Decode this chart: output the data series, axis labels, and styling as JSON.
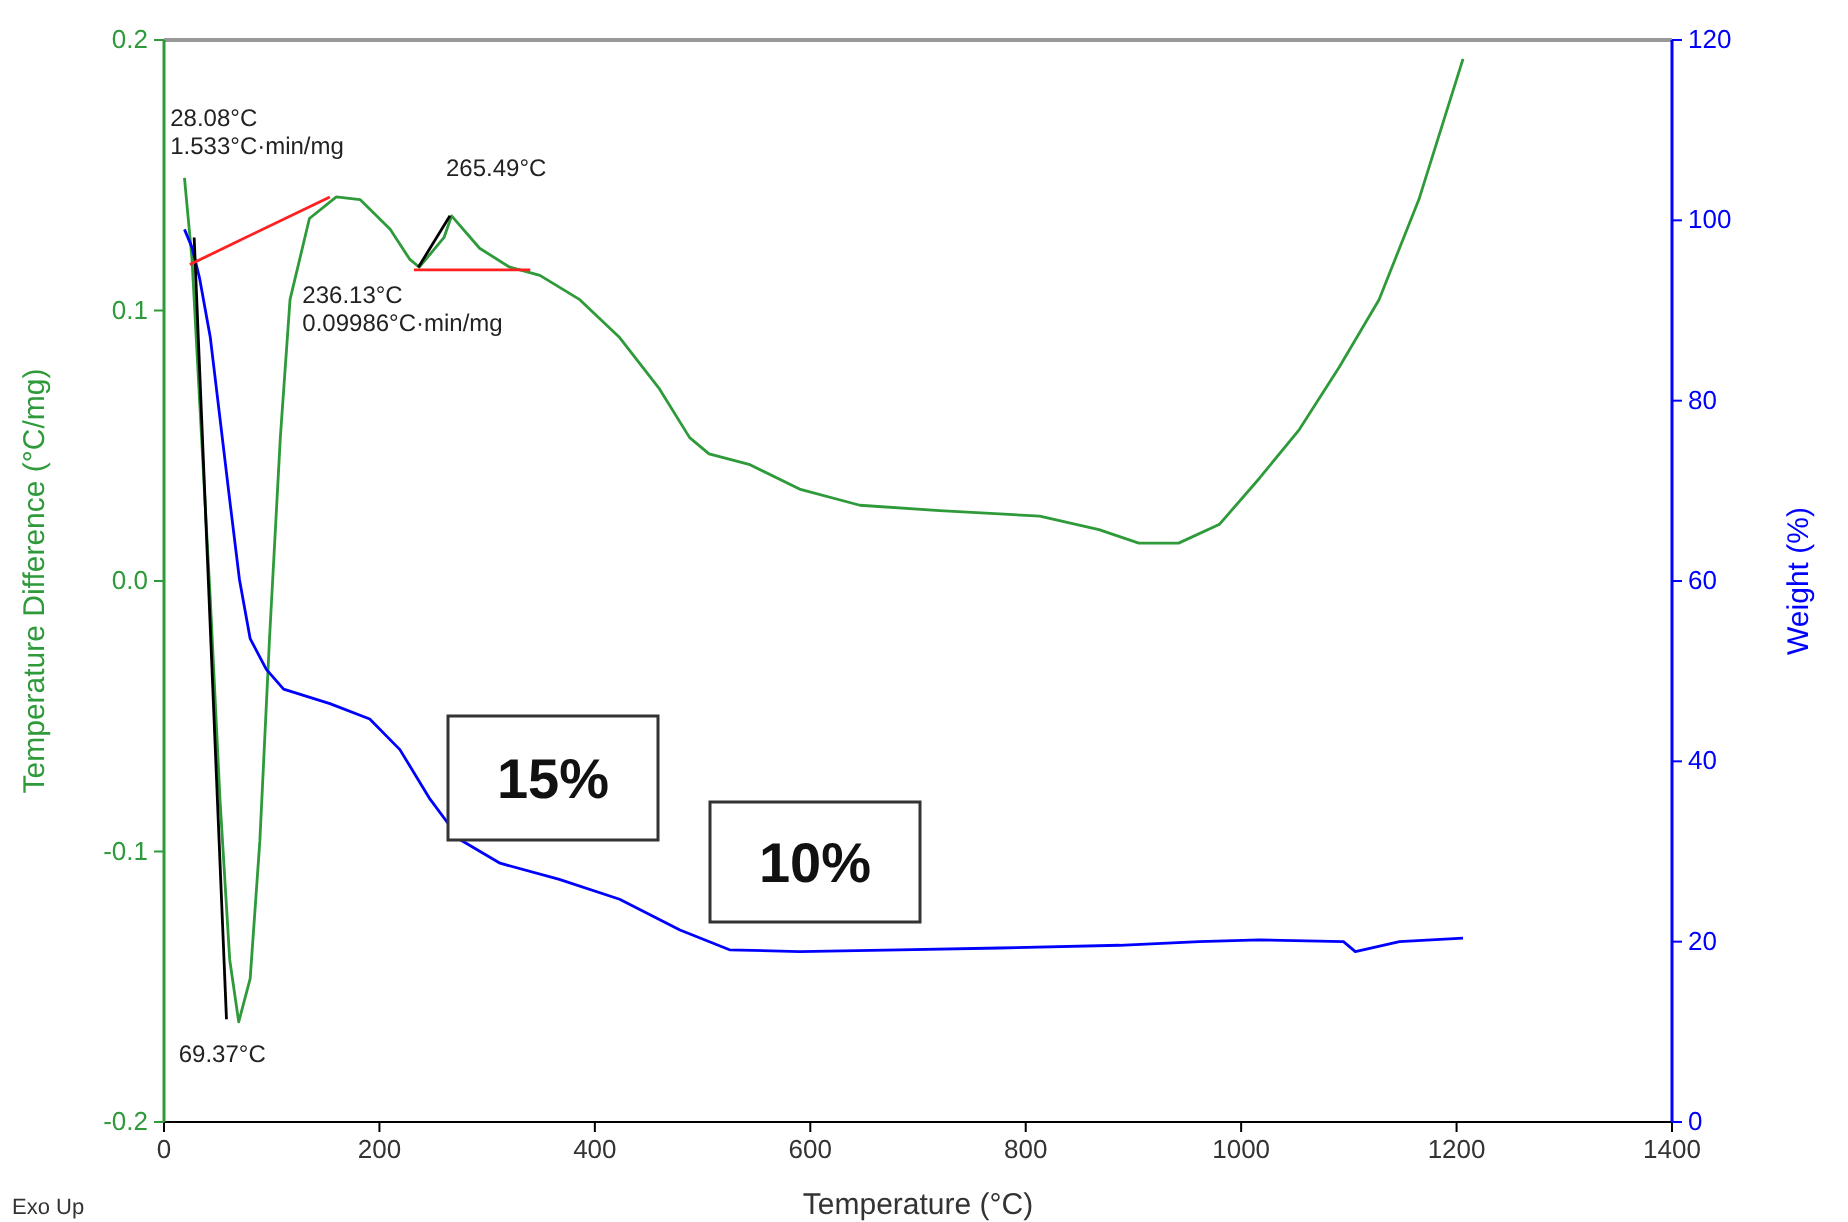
{
  "chart_data": {
    "type": "line",
    "xlabel": "Temperature (°C)",
    "ylabel": "Temperature Difference (°C/mg)",
    "y2label": "Weight (%)",
    "xlim": [
      0,
      1400
    ],
    "xticks": [
      0,
      200,
      400,
      600,
      800,
      1000,
      1200,
      1400
    ],
    "ylim": [
      -0.2,
      0.2
    ],
    "yticks": [
      -0.2,
      -0.1,
      {
        "value": 0,
        "label": "0.0"
      },
      0.1,
      0.2
    ],
    "y2lim": [
      0,
      120
    ],
    "y2ticks": [
      0,
      20,
      40,
      60,
      80,
      100,
      120
    ],
    "grid": false,
    "marker": "none",
    "line_style": "solid",
    "series": [
      {
        "color": "#2e9a3a",
        "axis": "y",
        "x": [
          19,
          26,
          33,
          43,
          52,
          61,
          69.37,
          80,
          89,
          98,
          108,
          117,
          135,
          160,
          182,
          210,
          228,
          237,
          260,
          267,
          293,
          321,
          349,
          386,
          423,
          460,
          488,
          506,
          544,
          590,
          646,
          720,
          813,
          868,
          905,
          942,
          980,
          1017,
          1054,
          1091,
          1128,
          1165,
          1206
        ],
        "values": [
          0.149,
          0.119,
          0.067,
          -0.007,
          -0.081,
          -0.14,
          -0.163,
          -0.147,
          -0.096,
          -0.021,
          0.053,
          0.104,
          0.134,
          0.142,
          0.141,
          0.13,
          0.119,
          0.116,
          0.127,
          0.135,
          0.123,
          0.116,
          0.113,
          0.104,
          0.09,
          0.071,
          0.053,
          0.047,
          0.043,
          0.034,
          0.028,
          0.026,
          0.024,
          0.019,
          0.014,
          0.014,
          0.021,
          0.038,
          0.056,
          0.079,
          0.104,
          0.141,
          0.193
        ]
      },
      {
        "color": "#0000ff",
        "axis": "y2",
        "x": [
          19,
          26,
          33,
          43,
          52,
          61,
          70,
          80,
          95,
          111,
          154,
          191,
          219,
          247,
          275,
          312,
          367,
          423,
          479,
          525,
          590,
          683,
          776,
          887,
          961,
          1017,
          1095,
          1106,
          1147,
          1206
        ],
        "values": [
          99,
          97,
          93.6,
          87,
          78,
          69,
          60.2,
          53.6,
          50.2,
          48,
          46.4,
          44.7,
          41.3,
          35.8,
          31.3,
          28.7,
          26.9,
          24.7,
          21.3,
          19.1,
          18.9,
          19.1,
          19.3,
          19.6,
          20,
          20.2,
          20,
          18.9,
          20,
          20.4
        ]
      },
      {
        "color": "#000000",
        "axis": "y",
        "x": [
          28,
          58
        ],
        "values": [
          0.127,
          -0.162
        ]
      },
      {
        "color": "#ff2020",
        "axis": "y",
        "x": [
          24,
          154
        ],
        "values": [
          0.117,
          0.142
        ]
      },
      {
        "color": "#ff2020",
        "axis": "y",
        "x": [
          232,
          340
        ],
        "values": [
          0.115,
          0.115
        ]
      },
      {
        "color": "#000000",
        "axis": "y",
        "x": [
          236.13,
          265.49
        ],
        "values": [
          0.116,
          0.135
        ]
      }
    ],
    "annotations": [
      {
        "text": "28.08°C\n1.533°C·min/mg",
        "x": 28.08,
        "y": 0.149
      },
      {
        "text": "265.49°C",
        "x": 265.49,
        "y": 0.135
      },
      {
        "text": "236.13°C\n0.09986°C·min/mg",
        "x": 236.13,
        "y": 0.116
      },
      {
        "text": "69.37°C",
        "x": 69.37,
        "y": -0.163
      },
      "15%",
      "10%",
      "Exo Up"
    ]
  }
}
